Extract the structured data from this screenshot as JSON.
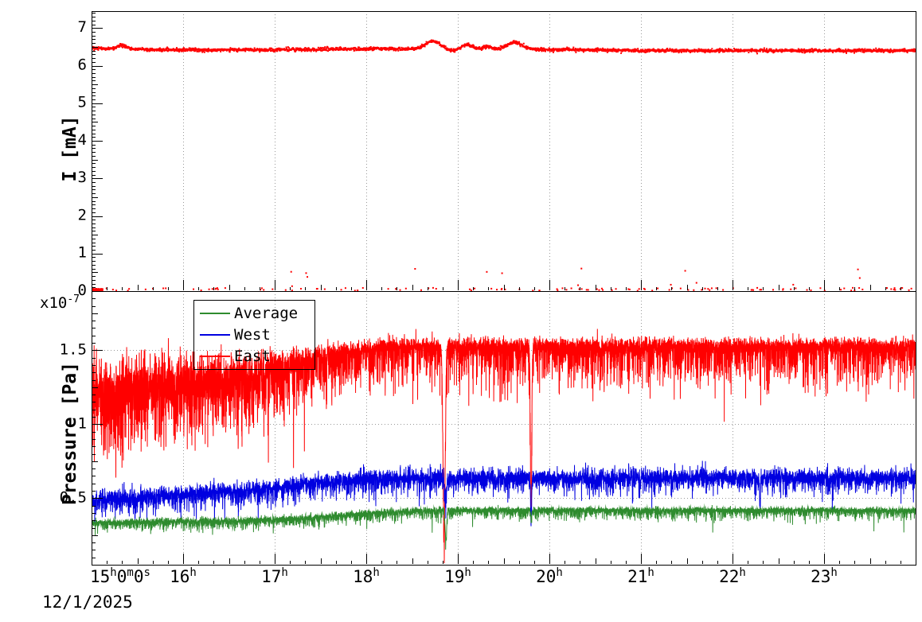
{
  "page": {
    "background": "#ffffff",
    "date_label": "12/1/2025"
  },
  "xaxis": {
    "start_hour": 15,
    "end_hour": 24,
    "first_tick_label": "15h0m0s",
    "ticks": [
      {
        "hour": 15,
        "parts": [
          [
            "15",
            "h"
          ],
          [
            "0",
            "m"
          ],
          [
            "0",
            "s"
          ]
        ]
      },
      {
        "hour": 16,
        "parts": [
          [
            "16",
            "h"
          ]
        ]
      },
      {
        "hour": 17,
        "parts": [
          [
            "17",
            "h"
          ]
        ]
      },
      {
        "hour": 18,
        "parts": [
          [
            "18",
            "h"
          ]
        ]
      },
      {
        "hour": 19,
        "parts": [
          [
            "19",
            "h"
          ]
        ]
      },
      {
        "hour": 20,
        "parts": [
          [
            "20",
            "h"
          ]
        ]
      },
      {
        "hour": 21,
        "parts": [
          [
            "21",
            "h"
          ]
        ]
      },
      {
        "hour": 22,
        "parts": [
          [
            "22",
            "h"
          ]
        ]
      },
      {
        "hour": 23,
        "parts": [
          [
            "23",
            "h"
          ]
        ]
      }
    ]
  },
  "chart_data": [
    {
      "type": "scatter",
      "panel": "top",
      "title": "",
      "ylabel": "I [mA]",
      "ylim": [
        0,
        7.45
      ],
      "yticks": [
        0,
        1,
        2,
        3,
        4,
        5,
        6,
        7
      ],
      "x_hours": [
        15,
        24
      ],
      "grid": "dotted-vertical",
      "series": [
        {
          "name": "beam-current",
          "color": "#ff0000",
          "marker": "square-2px",
          "points_per_hour": 300,
          "baseline": [
            [
              15,
              6.46
            ],
            [
              15.8,
              6.42
            ],
            [
              17,
              6.42
            ],
            [
              18.2,
              6.45
            ],
            [
              20.3,
              6.42
            ],
            [
              21,
              6.4
            ],
            [
              24,
              6.4
            ]
          ],
          "noise_sigma": 0.022,
          "bumps": [
            {
              "x": 15.33,
              "amp": 0.1,
              "w": 0.05
            },
            {
              "x": 18.73,
              "amp": 0.2,
              "w": 0.08
            },
            {
              "x": 18.95,
              "amp": -0.05,
              "w": 0.05
            },
            {
              "x": 19.1,
              "amp": 0.12,
              "w": 0.06
            },
            {
              "x": 19.33,
              "amp": 0.07,
              "w": 0.05
            },
            {
              "x": 19.62,
              "amp": 0.19,
              "w": 0.08
            }
          ],
          "zero_scatter": {
            "fraction": 0.045,
            "band": [
              0.01,
              0.09
            ]
          },
          "outliers": {
            "fraction": 0.006,
            "band": [
              0.12,
              0.62
            ]
          },
          "zero_run": {
            "from": 15.0,
            "to": 15.12
          }
        }
      ]
    },
    {
      "type": "line",
      "panel": "bottom",
      "title": "",
      "ylabel": "Pressure [Pa]",
      "scale": {
        "mantissa": "x10",
        "exponent": "-7"
      },
      "ylim": [
        0.05,
        1.9
      ],
      "yticks": [
        0.5,
        1,
        1.5
      ],
      "ytick_labels": [
        "0.5",
        "1",
        "1.5"
      ],
      "x_hours": [
        15,
        24
      ],
      "grid": "dotted-both",
      "legend": {
        "position": "top-left",
        "entries": [
          {
            "label": "Average",
            "color": "#2e8b2e"
          },
          {
            "label": "West",
            "color": "#0000e0"
          },
          {
            "label": "East",
            "color": "#ff0000"
          }
        ]
      },
      "series": [
        {
          "name": "East",
          "color": "#ff0000",
          "points_per_hour": 900,
          "base": [
            [
              15,
              1.33
            ],
            [
              16.5,
              1.36
            ],
            [
              17.2,
              1.43
            ],
            [
              17.8,
              1.5
            ],
            [
              18.3,
              1.53
            ],
            [
              24,
              1.53
            ]
          ],
          "jitter": [
            [
              15,
              0.085
            ],
            [
              17,
              0.05
            ],
            [
              17.8,
              0.028
            ],
            [
              24,
              0.026
            ]
          ],
          "spike_prob": [
            [
              15,
              0.85
            ],
            [
              17,
              0.6
            ],
            [
              17.8,
              0.32
            ],
            [
              24,
              0.3
            ]
          ],
          "spike_amp": [
            [
              15,
              0.22
            ],
            [
              17,
              0.18
            ],
            [
              17.8,
              0.14
            ],
            [
              24,
              0.13
            ]
          ],
          "dips": [
            {
              "x": 18.85,
              "depth": 1.27,
              "w": 0.012
            },
            {
              "x": 19.8,
              "depth": 1.18,
              "w": 0.007
            }
          ]
        },
        {
          "name": "West",
          "color": "#0000e0",
          "points_per_hour": 700,
          "base": [
            [
              15,
              0.49
            ],
            [
              16,
              0.53
            ],
            [
              16.8,
              0.56
            ],
            [
              17.6,
              0.62
            ],
            [
              18.2,
              0.64
            ],
            [
              24,
              0.645
            ]
          ],
          "jitter": [
            [
              15,
              0.03
            ],
            [
              24,
              0.028
            ]
          ],
          "spike_prob": [
            [
              15,
              0.3
            ],
            [
              24,
              0.3
            ]
          ],
          "spike_amp": [
            [
              15,
              0.055
            ],
            [
              24,
              0.05
            ]
          ],
          "dips": [
            {
              "x": 18.87,
              "depth": 0.13,
              "w": 0.01
            },
            {
              "x": 19.8,
              "depth": 0.3,
              "w": 0.005
            },
            {
              "x": 22.3,
              "depth": 0.2,
              "w": 0.004
            }
          ]
        },
        {
          "name": "Average",
          "color": "#2e8b2e",
          "points_per_hour": 700,
          "base": [
            [
              15,
              0.335
            ],
            [
              16.5,
              0.35
            ],
            [
              17.3,
              0.365
            ],
            [
              18,
              0.4
            ],
            [
              18.6,
              0.42
            ],
            [
              24,
              0.42
            ]
          ],
          "jitter": [
            [
              15,
              0.011
            ],
            [
              24,
              0.009
            ]
          ],
          "spike_prob": [
            [
              15,
              0.35
            ],
            [
              24,
              0.35
            ]
          ],
          "spike_amp": [
            [
              15,
              0.03
            ],
            [
              24,
              0.032
            ]
          ],
          "dips": [
            {
              "x": 18.87,
              "depth": 0.21,
              "w": 0.008
            },
            {
              "x": 19.8,
              "depth": 0.05,
              "w": 0.006
            }
          ]
        }
      ]
    }
  ]
}
